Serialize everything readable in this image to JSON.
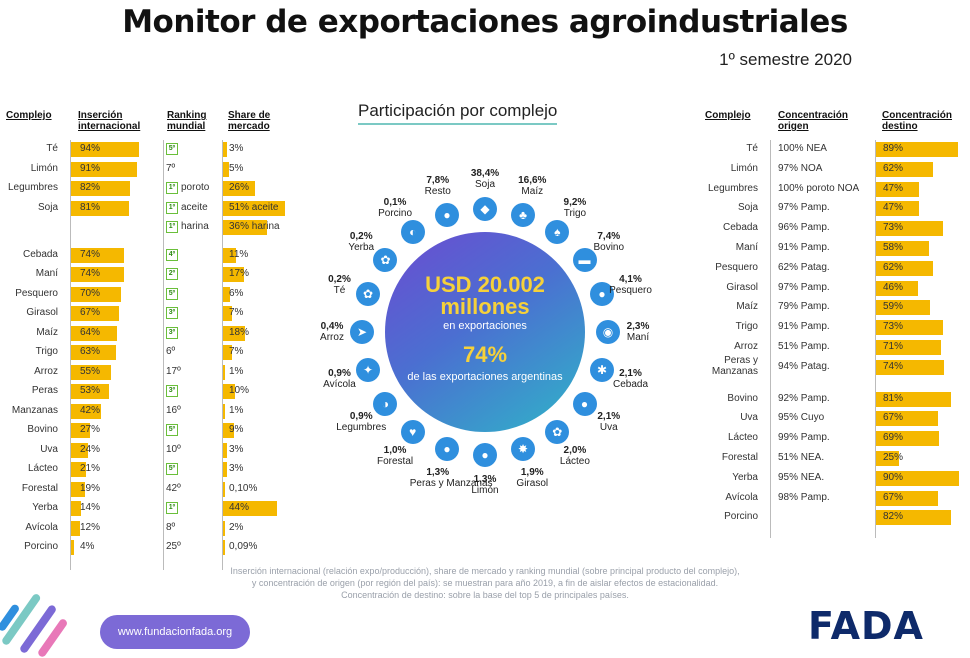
{
  "title": "Monitor de exportaciones agroindustriales",
  "subtitle": "1º semestre 2020",
  "left_table": {
    "headers": {
      "complejo": "Complejo",
      "insercion": "Inserción internacional",
      "ranking": "Ranking mundial",
      "share": "Share de mercado"
    },
    "rows": [
      {
        "name": "Té",
        "insercion": "94%",
        "ins_val": 94,
        "rank": "5º",
        "rank_box": true,
        "share": "3%",
        "share_val": 3
      },
      {
        "name": "Limón",
        "insercion": "91%",
        "ins_val": 91,
        "rank": "7º",
        "rank_box": false,
        "share": "5%",
        "share_val": 5
      },
      {
        "name": "Legumbres",
        "insercion": "82%",
        "ins_val": 82,
        "rank": "1º poroto",
        "rank_box": true,
        "share": "26%",
        "share_val": 26
      },
      {
        "name": "Soja",
        "insercion": "81%",
        "ins_val": 81,
        "rank": "1º aceite",
        "rank_box": true,
        "share": "51% aceite",
        "share_val": 51
      },
      {
        "name": "",
        "insercion": "",
        "ins_val": 0,
        "rank": "1º harina",
        "rank_box": true,
        "share": "36% harina",
        "share_val": 36
      },
      {
        "name": "Cebada",
        "insercion": "74%",
        "ins_val": 74,
        "rank": "4º",
        "rank_box": true,
        "share": "11%",
        "share_val": 11
      },
      {
        "name": "Maní",
        "insercion": "74%",
        "ins_val": 74,
        "rank": "2º",
        "rank_box": true,
        "share": "17%",
        "share_val": 17
      },
      {
        "name": "Pesquero",
        "insercion": "70%",
        "ins_val": 70,
        "rank": "5º",
        "rank_box": true,
        "share": "6%",
        "share_val": 6
      },
      {
        "name": "Girasol",
        "insercion": "67%",
        "ins_val": 67,
        "rank": "3º",
        "rank_box": true,
        "share": "7%",
        "share_val": 7
      },
      {
        "name": "Maíz",
        "insercion": "64%",
        "ins_val": 64,
        "rank": "3º",
        "rank_box": true,
        "share": "18%",
        "share_val": 18
      },
      {
        "name": "Trigo",
        "insercion": "63%",
        "ins_val": 63,
        "rank": "6º",
        "rank_box": false,
        "share": "7%",
        "share_val": 7
      },
      {
        "name": "Arroz",
        "insercion": "55%",
        "ins_val": 55,
        "rank": "17º",
        "rank_box": false,
        "share": "1%",
        "share_val": 1
      },
      {
        "name": "Peras",
        "insercion": "53%",
        "ins_val": 53,
        "rank": "3º",
        "rank_box": true,
        "share": "10%",
        "share_val": 10
      },
      {
        "name": "Manzanas",
        "insercion": "42%",
        "ins_val": 42,
        "rank": "16º",
        "rank_box": false,
        "share": "1%",
        "share_val": 1
      },
      {
        "name": "Bovino",
        "insercion": "27%",
        "ins_val": 27,
        "rank": "5º",
        "rank_box": true,
        "share": "9%",
        "share_val": 9
      },
      {
        "name": "Uva",
        "insercion": "24%",
        "ins_val": 24,
        "rank": "10º",
        "rank_box": false,
        "share": "3%",
        "share_val": 3
      },
      {
        "name": "Lácteo",
        "insercion": "21%",
        "ins_val": 21,
        "rank": "5º",
        "rank_box": true,
        "share": "3%",
        "share_val": 3
      },
      {
        "name": "Forestal",
        "insercion": "19%",
        "ins_val": 19,
        "rank": "42º",
        "rank_box": false,
        "share": "0,10%",
        "share_val": 0.1
      },
      {
        "name": "Yerba",
        "insercion": "14%",
        "ins_val": 14,
        "rank": "1º",
        "rank_box": true,
        "share": "44%",
        "share_val": 44
      },
      {
        "name": "Avícola",
        "insercion": "12%",
        "ins_val": 12,
        "rank": "8º",
        "rank_box": false,
        "share": "2%",
        "share_val": 2
      },
      {
        "name": "Porcino",
        "insercion": "4%",
        "ins_val": 4,
        "rank": "25º",
        "rank_box": false,
        "share": "0,09%",
        "share_val": 0.09
      }
    ]
  },
  "center": {
    "chart_title": "Participación por complejo",
    "total": "USD 20.002 millones",
    "total_sub": "en exportaciones",
    "pct": "74%",
    "pct_sub": "de las exportaciones argentinas",
    "segments": [
      {
        "pct": "38,4%",
        "label": "Soja"
      },
      {
        "pct": "16,6%",
        "label": "Maíz"
      },
      {
        "pct": "9,2%",
        "label": "Trigo"
      },
      {
        "pct": "7,4%",
        "label": "Bovino"
      },
      {
        "pct": "4,1%",
        "label": "Pesquero"
      },
      {
        "pct": "2,3%",
        "label": "Maní"
      },
      {
        "pct": "2,1%",
        "label": "Cebada"
      },
      {
        "pct": "2,1%",
        "label": "Uva"
      },
      {
        "pct": "2,0%",
        "label": "Lácteo"
      },
      {
        "pct": "1,9%",
        "label": "Girasol"
      },
      {
        "pct": "1,3%",
        "label": "Limón"
      },
      {
        "pct": "1,3%",
        "label": "Peras y Manzanas"
      },
      {
        "pct": "1,0%",
        "label": "Forestal"
      },
      {
        "pct": "0,9%",
        "label": "Legumbres"
      },
      {
        "pct": "0,9%",
        "label": "Avícola"
      },
      {
        "pct": "0,4%",
        "label": "Arroz"
      },
      {
        "pct": "0,2%",
        "label": "Té"
      },
      {
        "pct": "0,2%",
        "label": "Yerba"
      },
      {
        "pct": "0,1%",
        "label": "Porcino"
      },
      {
        "pct": "7,8%",
        "label": "Resto"
      }
    ]
  },
  "right_table": {
    "headers": {
      "complejo": "Complejo",
      "origen": "Concentración origen",
      "destino": "Concentración destino"
    },
    "rows": [
      {
        "name": "Té",
        "origen": "100% NEA",
        "destino": "89%",
        "dest_val": 89
      },
      {
        "name": "Limón",
        "origen": "97% NOA",
        "destino": "62%",
        "dest_val": 62
      },
      {
        "name": "Legumbres",
        "origen": "100% poroto NOA",
        "destino": "47%",
        "dest_val": 47
      },
      {
        "name": "Soja",
        "origen": "97% Pamp.",
        "destino": "47%",
        "dest_val": 47
      },
      {
        "name": "Cebada",
        "origen": "96% Pamp.",
        "destino": "73%",
        "dest_val": 73
      },
      {
        "name": "Maní",
        "origen": "91% Pamp.",
        "destino": "58%",
        "dest_val": 58
      },
      {
        "name": "Pesquero",
        "origen": "62% Patag.",
        "destino": "62%",
        "dest_val": 62
      },
      {
        "name": "Girasol",
        "origen": "97% Pamp.",
        "destino": "46%",
        "dest_val": 46
      },
      {
        "name": "Maíz",
        "origen": "79% Pamp.",
        "destino": "59%",
        "dest_val": 59
      },
      {
        "name": "Trigo",
        "origen": "91% Pamp.",
        "destino": "73%",
        "dest_val": 73
      },
      {
        "name": "Arroz",
        "origen": "51% Pamp.",
        "destino": "71%",
        "dest_val": 71
      },
      {
        "name": "Peras y Manzanas",
        "origen": "94% Patag.",
        "destino": "74%",
        "dest_val": 74
      },
      {
        "name": "Bovino",
        "origen": "92% Pamp.",
        "destino": "81%",
        "dest_val": 81
      },
      {
        "name": "Uva",
        "origen": "95% Cuyo",
        "destino": "67%",
        "dest_val": 67
      },
      {
        "name": "Lácteo",
        "origen": "99% Pamp.",
        "destino": "69%",
        "dest_val": 69
      },
      {
        "name": "Forestal",
        "origen": "51% NEA.",
        "destino": "25%",
        "dest_val": 25
      },
      {
        "name": "Yerba",
        "origen": "95% NEA.",
        "destino": "90%",
        "dest_val": 90
      },
      {
        "name": "Avícola",
        "origen": "98% Pamp.",
        "destino": "67%",
        "dest_val": 67
      },
      {
        "name": "Porcino",
        "origen": "",
        "destino": "82%",
        "dest_val": 82
      }
    ]
  },
  "footnote": {
    "line1": "Inserción internacional (relación expo/producción), share de mercado y ranking mundial (sobre principal producto del complejo),",
    "line2": "y concentración de origen (por región del país): se muestran para año 2019, a fin de aislar efectos de estacionalidad.",
    "line3": "Concentración de destino: sobre la base del top 5 de principales países."
  },
  "footer": {
    "url": "www.fundacionfada.org",
    "logo": "FADA"
  },
  "colors": {
    "bar": "#f5b800",
    "ring_icon": "#2f8fde",
    "rank_box": "#6abf3a",
    "blob_start": "#6c4bd1",
    "blob_end": "#2fb5c8",
    "logo": "#0e2a6a"
  }
}
